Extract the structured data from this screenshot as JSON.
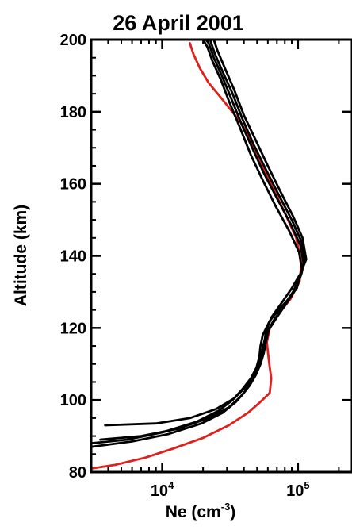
{
  "chart_data": {
    "type": "line",
    "title": "26 April 2001",
    "xlabel": {
      "base": "Ne (cm",
      "sup": "-3",
      "tail": ")"
    },
    "ylabel": "Altitude (km)",
    "x_scale": "log",
    "xlim": [
      3000,
      250000
    ],
    "ylim": [
      80,
      200
    ],
    "x_ticks": [
      {
        "value": 10000,
        "base": "10",
        "exp": "4"
      },
      {
        "value": 100000,
        "base": "10",
        "exp": "5"
      }
    ],
    "y_ticks": [
      {
        "value": 80,
        "label": "80"
      },
      {
        "value": 100,
        "label": "100"
      },
      {
        "value": 120,
        "label": "120"
      },
      {
        "value": 140,
        "label": "140"
      },
      {
        "value": 160,
        "label": "160"
      },
      {
        "value": 180,
        "label": "180"
      },
      {
        "value": 200,
        "label": "200"
      }
    ],
    "grid": false,
    "colors": {
      "observed": "#000000",
      "model": "#e0201c"
    },
    "series": [
      {
        "color": "#e0201c",
        "points": [
          [
            3000,
            81
          ],
          [
            4500,
            82
          ],
          [
            7500,
            84
          ],
          [
            12000,
            86.5
          ],
          [
            20000,
            89.5
          ],
          [
            31000,
            93
          ],
          [
            43000,
            96.5
          ],
          [
            53000,
            99.5
          ],
          [
            62000,
            102
          ],
          [
            63500,
            106
          ],
          [
            61000,
            111
          ],
          [
            59000,
            116
          ],
          [
            62000,
            120
          ],
          [
            72000,
            124
          ],
          [
            88000,
            128
          ],
          [
            103000,
            133
          ],
          [
            106000,
            138
          ],
          [
            97000,
            145
          ],
          [
            80000,
            152
          ],
          [
            63000,
            160
          ],
          [
            48000,
            170
          ],
          [
            38000,
            177
          ],
          [
            27000,
            184
          ],
          [
            22000,
            188
          ],
          [
            19000,
            192
          ],
          [
            17000,
            196
          ],
          [
            16000,
            199
          ]
        ]
      },
      {
        "color": "#000000",
        "points": [
          [
            3000,
            88
          ],
          [
            5500,
            89
          ],
          [
            10000,
            91
          ],
          [
            18000,
            94
          ],
          [
            26000,
            97
          ],
          [
            33000,
            100
          ],
          [
            39000,
            103
          ],
          [
            45000,
            106
          ],
          [
            49500,
            109
          ],
          [
            52000,
            112
          ],
          [
            53000,
            115
          ],
          [
            55000,
            118
          ],
          [
            62000,
            122
          ],
          [
            72000,
            125
          ],
          [
            85000,
            128
          ],
          [
            98000,
            131
          ],
          [
            107000,
            136
          ],
          [
            102000,
            141
          ],
          [
            86000,
            147
          ],
          [
            68000,
            154
          ],
          [
            55000,
            161
          ],
          [
            45000,
            168
          ],
          [
            37000,
            176
          ],
          [
            31000,
            183
          ],
          [
            27000,
            189
          ],
          [
            23500,
            194
          ],
          [
            21500,
            198
          ],
          [
            20000,
            200
          ]
        ]
      },
      {
        "color": "#000000",
        "points": [
          [
            3000,
            87
          ],
          [
            6000,
            88.5
          ],
          [
            11000,
            90.5
          ],
          [
            19500,
            93.5
          ],
          [
            28000,
            96.5
          ],
          [
            35000,
            99.5
          ],
          [
            41000,
            102.5
          ],
          [
            46000,
            105.5
          ],
          [
            50000,
            108.5
          ],
          [
            53000,
            111.5
          ],
          [
            55000,
            114.5
          ],
          [
            58000,
            118
          ],
          [
            66000,
            122
          ],
          [
            78000,
            126
          ],
          [
            92000,
            130
          ],
          [
            103000,
            134
          ],
          [
            110000,
            138
          ],
          [
            104000,
            143
          ],
          [
            88000,
            149
          ],
          [
            70000,
            156
          ],
          [
            56000,
            163
          ],
          [
            46000,
            170
          ],
          [
            38000,
            177
          ],
          [
            32000,
            184
          ],
          [
            27500,
            190
          ],
          [
            24000,
            195
          ],
          [
            22000,
            199
          ],
          [
            21000,
            200
          ]
        ]
      },
      {
        "color": "#000000",
        "points": [
          [
            3500,
            89
          ],
          [
            7000,
            90
          ],
          [
            13000,
            92
          ],
          [
            22000,
            95
          ],
          [
            31000,
            98
          ],
          [
            38000,
            101
          ],
          [
            44000,
            104
          ],
          [
            49000,
            107
          ],
          [
            53000,
            110
          ],
          [
            56000,
            113
          ],
          [
            58000,
            116
          ],
          [
            61000,
            119.5
          ],
          [
            70000,
            123
          ],
          [
            83000,
            127
          ],
          [
            97000,
            131
          ],
          [
            106000,
            135
          ],
          [
            112000,
            139
          ],
          [
            106000,
            144
          ],
          [
            90000,
            150
          ],
          [
            72000,
            157
          ],
          [
            58000,
            164
          ],
          [
            47000,
            171
          ],
          [
            39000,
            178
          ],
          [
            33000,
            185
          ],
          [
            28000,
            191
          ],
          [
            24500,
            196
          ],
          [
            22500,
            200
          ]
        ]
      },
      {
        "color": "#000000",
        "points": [
          [
            3800,
            93
          ],
          [
            9000,
            93.5
          ],
          [
            16000,
            95
          ],
          [
            25000,
            97.5
          ],
          [
            34000,
            100.5
          ],
          [
            41000,
            103.5
          ],
          [
            46500,
            106.5
          ],
          [
            51000,
            109.5
          ],
          [
            54500,
            112.5
          ],
          [
            56500,
            115.5
          ],
          [
            58000,
            119
          ],
          [
            64000,
            123
          ],
          [
            76000,
            127
          ],
          [
            90000,
            131
          ],
          [
            104000,
            135
          ],
          [
            115000,
            139
          ],
          [
            108000,
            145
          ],
          [
            92000,
            151
          ],
          [
            74000,
            158
          ],
          [
            60000,
            165
          ],
          [
            49000,
            172
          ],
          [
            40000,
            179
          ],
          [
            34000,
            186
          ],
          [
            29000,
            192
          ],
          [
            25500,
            197
          ],
          [
            24000,
            200
          ]
        ]
      }
    ]
  }
}
